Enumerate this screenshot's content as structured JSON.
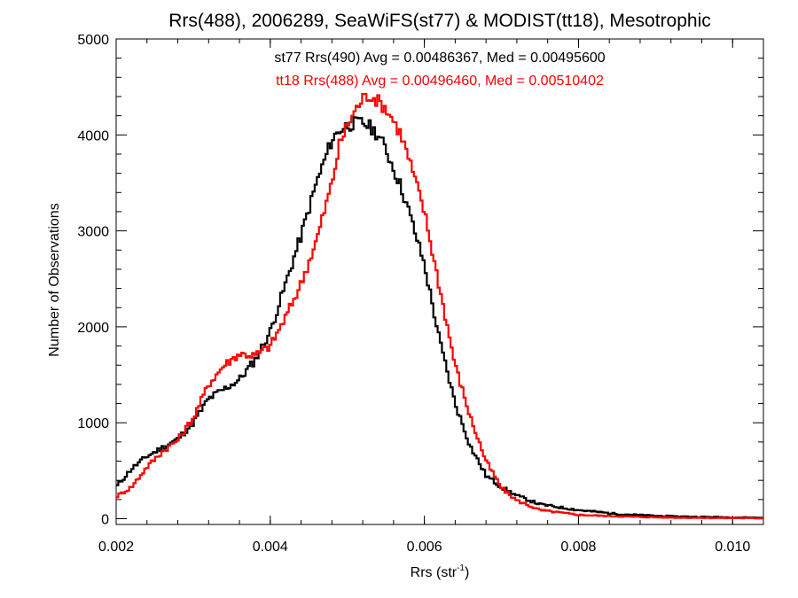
{
  "chart_data": {
    "type": "line",
    "step": true,
    "title": "Rrs(488), 2006289, SeaWiFS(st77) & MODIST(tt18), Mesotrophic",
    "xlabel": {
      "base": "Rrs (str",
      "sup": "-1",
      "close": ")"
    },
    "ylabel": "Number of Observations",
    "xlim": [
      0.002,
      0.0104
    ],
    "ylim": [
      -60,
      5000
    ],
    "xticks": [
      0.002,
      0.004,
      0.006,
      0.008,
      0.01
    ],
    "xtick_labels": [
      "0.002",
      "0.004",
      "0.006",
      "0.008",
      "0.010"
    ],
    "yticks": [
      0,
      1000,
      2000,
      3000,
      4000,
      5000
    ],
    "ytick_labels": [
      "0",
      "1000",
      "2000",
      "3000",
      "4000",
      "5000"
    ],
    "annotations": [
      {
        "text": "st77 Rrs(490) Avg = 0.00486367, Med = 0.00495600",
        "color": "#000000"
      },
      {
        "text": "tt18 Rrs(488) Avg = 0.00496460, Med = 0.00510402",
        "color": "#ff0000"
      }
    ],
    "series": [
      {
        "color": "#000000",
        "x": [
          0.002,
          0.0022,
          0.0024,
          0.0026,
          0.0028,
          0.003,
          0.0032,
          0.0034,
          0.0036,
          0.0038,
          0.004,
          0.0042,
          0.0044,
          0.0046,
          0.0048,
          0.0049,
          0.005,
          0.0051,
          0.0052,
          0.0053,
          0.0054,
          0.0055,
          0.0056,
          0.0057,
          0.0058,
          0.006,
          0.0062,
          0.0064,
          0.0066,
          0.0068,
          0.007,
          0.0072,
          0.0075,
          0.008,
          0.0085,
          0.009,
          0.0095,
          0.0104
        ],
        "y": [
          330,
          520,
          650,
          740,
          830,
          1000,
          1250,
          1350,
          1450,
          1650,
          1950,
          2450,
          2950,
          3500,
          3950,
          4050,
          4100,
          4120,
          4130,
          4080,
          4000,
          3850,
          3650,
          3450,
          3200,
          2650,
          1850,
          1200,
          750,
          450,
          330,
          240,
          150,
          90,
          50,
          30,
          20,
          10
        ]
      },
      {
        "color": "#ff0000",
        "x": [
          0.002,
          0.0022,
          0.0024,
          0.0026,
          0.0028,
          0.003,
          0.0032,
          0.0034,
          0.0036,
          0.0038,
          0.004,
          0.0042,
          0.0044,
          0.0046,
          0.0048,
          0.0049,
          0.005,
          0.0051,
          0.0052,
          0.0053,
          0.0054,
          0.0055,
          0.0056,
          0.0057,
          0.0058,
          0.006,
          0.0062,
          0.0064,
          0.0066,
          0.0068,
          0.007,
          0.0072,
          0.0075,
          0.008,
          0.0085,
          0.009,
          0.0095,
          0.0104
        ],
        "y": [
          230,
          330,
          540,
          700,
          820,
          1050,
          1400,
          1600,
          1720,
          1700,
          1800,
          2100,
          2450,
          2900,
          3500,
          3900,
          4100,
          4250,
          4380,
          4420,
          4350,
          4280,
          4150,
          4000,
          3750,
          3200,
          2400,
          1600,
          1050,
          600,
          320,
          190,
          90,
          40,
          25,
          15,
          10,
          5
        ]
      }
    ]
  }
}
